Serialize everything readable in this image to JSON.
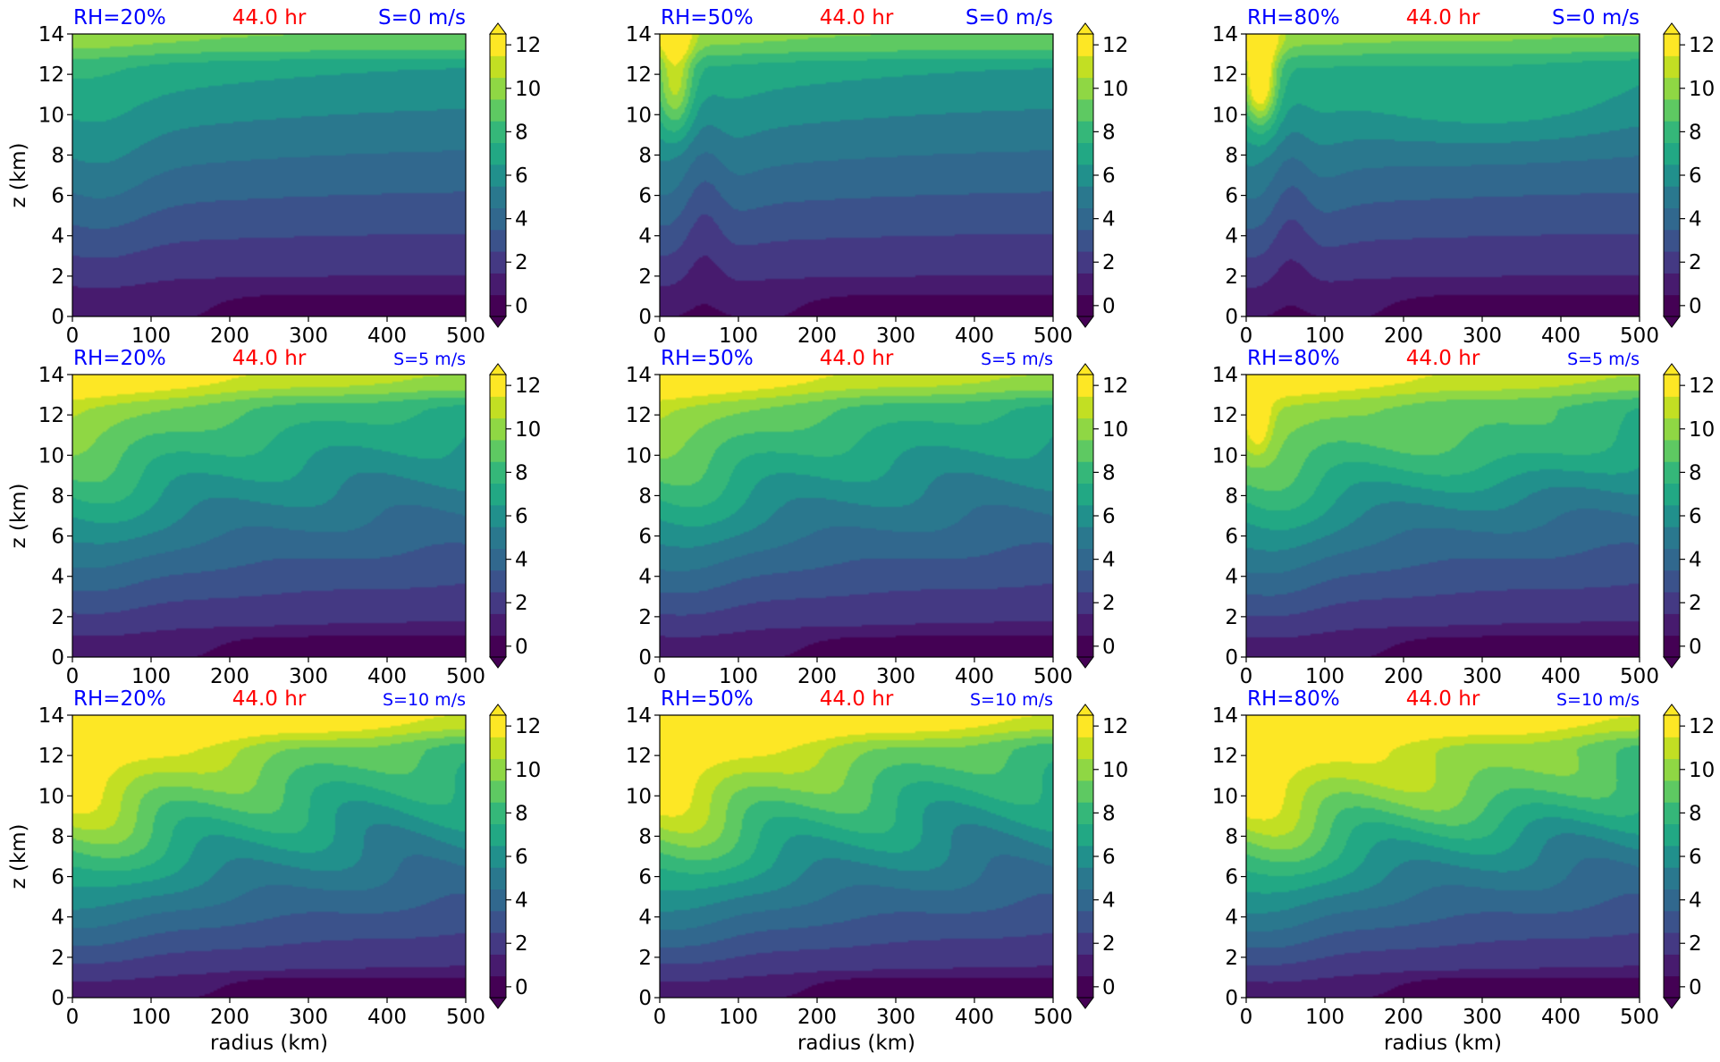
{
  "figure": {
    "shared_xlabel": "radius (km)",
    "shared_ylabel": "z (km)"
  },
  "colors": {
    "rh_label": "#0000ff",
    "time_label": "#ff0000",
    "shear_label": "#0000ff",
    "colormap": [
      "#440154",
      "#471b6e",
      "#443983",
      "#3b528b",
      "#31688e",
      "#2a788e",
      "#21908c",
      "#22a884",
      "#35b779",
      "#5ec962",
      "#8fd744",
      "#c2df23",
      "#fde725"
    ]
  },
  "chart_data": [
    {
      "type": "heatmap",
      "rh_label": "RH=20%",
      "time_label": "44.0 hr",
      "shear_label": "S=0 m/s",
      "xlabel": "",
      "ylabel": "z (km)",
      "xlim": [
        0,
        500
      ],
      "ylim": [
        0,
        14
      ],
      "x_ticks": [
        "0",
        "100",
        "200",
        "300",
        "400",
        "500"
      ],
      "y_ticks": [
        "0",
        "2",
        "4",
        "6",
        "8",
        "10",
        "12",
        "14"
      ],
      "colorbar": {
        "ticks": [
          "0",
          "2",
          "4",
          "6",
          "8",
          "10",
          "12"
        ],
        "range": [
          0,
          13
        ],
        "levels": 13,
        "extend": "both"
      },
      "col": 0,
      "row": 0,
      "rh": 20,
      "shear": 0
    },
    {
      "type": "heatmap",
      "rh_label": "RH=50%",
      "time_label": "44.0 hr",
      "shear_label": "S=0 m/s",
      "xlabel": "",
      "ylabel": "",
      "xlim": [
        0,
        500
      ],
      "ylim": [
        0,
        14
      ],
      "x_ticks": [
        "0",
        "100",
        "200",
        "300",
        "400",
        "500"
      ],
      "y_ticks": [
        "0",
        "2",
        "4",
        "6",
        "8",
        "10",
        "12",
        "14"
      ],
      "colorbar": {
        "ticks": [
          "0",
          "2",
          "4",
          "6",
          "8",
          "10",
          "12"
        ],
        "range": [
          0,
          13
        ],
        "levels": 13,
        "extend": "both"
      },
      "col": 1,
      "row": 0,
      "rh": 50,
      "shear": 0
    },
    {
      "type": "heatmap",
      "rh_label": "RH=80%",
      "time_label": "44.0 hr",
      "shear_label": "S=0 m/s",
      "xlabel": "",
      "ylabel": "",
      "xlim": [
        0,
        500
      ],
      "ylim": [
        0,
        14
      ],
      "x_ticks": [
        "0",
        "100",
        "200",
        "300",
        "400",
        "500"
      ],
      "y_ticks": [
        "0",
        "2",
        "4",
        "6",
        "8",
        "10",
        "12",
        "14"
      ],
      "colorbar": {
        "ticks": [
          "0",
          "2",
          "4",
          "6",
          "8",
          "10",
          "12"
        ],
        "range": [
          0,
          13
        ],
        "levels": 13,
        "extend": "both"
      },
      "col": 2,
      "row": 0,
      "rh": 80,
      "shear": 0
    },
    {
      "type": "heatmap",
      "rh_label": "RH=20%",
      "time_label": "44.0 hr",
      "shear_label": "S=5 m/s",
      "xlabel": "",
      "ylabel": "z (km)",
      "xlim": [
        0,
        500
      ],
      "ylim": [
        0,
        14
      ],
      "x_ticks": [
        "0",
        "100",
        "200",
        "300",
        "400",
        "500"
      ],
      "y_ticks": [
        "0",
        "2",
        "4",
        "6",
        "8",
        "10",
        "12",
        "14"
      ],
      "colorbar": {
        "ticks": [
          "0",
          "2",
          "4",
          "6",
          "8",
          "10",
          "12"
        ],
        "range": [
          0,
          13
        ],
        "levels": 13,
        "extend": "both"
      },
      "col": 0,
      "row": 1,
      "rh": 20,
      "shear": 5
    },
    {
      "type": "heatmap",
      "rh_label": "RH=50%",
      "time_label": "44.0 hr",
      "shear_label": "S=5 m/s",
      "xlabel": "",
      "ylabel": "",
      "xlim": [
        0,
        500
      ],
      "ylim": [
        0,
        14
      ],
      "x_ticks": [
        "0",
        "100",
        "200",
        "300",
        "400",
        "500"
      ],
      "y_ticks": [
        "0",
        "2",
        "4",
        "6",
        "8",
        "10",
        "12",
        "14"
      ],
      "colorbar": {
        "ticks": [
          "0",
          "2",
          "4",
          "6",
          "8",
          "10",
          "12"
        ],
        "range": [
          0,
          13
        ],
        "levels": 13,
        "extend": "both"
      },
      "col": 1,
      "row": 1,
      "rh": 50,
      "shear": 5
    },
    {
      "type": "heatmap",
      "rh_label": "RH=80%",
      "time_label": "44.0 hr",
      "shear_label": "S=5 m/s",
      "xlabel": "",
      "ylabel": "",
      "xlim": [
        0,
        500
      ],
      "ylim": [
        0,
        14
      ],
      "x_ticks": [
        "0",
        "100",
        "200",
        "300",
        "400",
        "500"
      ],
      "y_ticks": [
        "0",
        "2",
        "4",
        "6",
        "8",
        "10",
        "12",
        "14"
      ],
      "colorbar": {
        "ticks": [
          "0",
          "2",
          "4",
          "6",
          "8",
          "10",
          "12"
        ],
        "range": [
          0,
          13
        ],
        "levels": 13,
        "extend": "both"
      },
      "col": 2,
      "row": 1,
      "rh": 80,
      "shear": 5
    },
    {
      "type": "heatmap",
      "rh_label": "RH=20%",
      "time_label": "44.0 hr",
      "shear_label": "S=10 m/s",
      "xlabel": "radius (km)",
      "ylabel": "z (km)",
      "xlim": [
        0,
        500
      ],
      "ylim": [
        0,
        14
      ],
      "x_ticks": [
        "0",
        "100",
        "200",
        "300",
        "400",
        "500"
      ],
      "y_ticks": [
        "0",
        "2",
        "4",
        "6",
        "8",
        "10",
        "12",
        "14"
      ],
      "colorbar": {
        "ticks": [
          "0",
          "2",
          "4",
          "6",
          "8",
          "10",
          "12"
        ],
        "range": [
          0,
          13
        ],
        "levels": 13,
        "extend": "both"
      },
      "col": 0,
      "row": 2,
      "rh": 20,
      "shear": 10
    },
    {
      "type": "heatmap",
      "rh_label": "RH=50%",
      "time_label": "44.0 hr",
      "shear_label": "S=10 m/s",
      "xlabel": "radius (km)",
      "ylabel": "",
      "xlim": [
        0,
        500
      ],
      "ylim": [
        0,
        14
      ],
      "x_ticks": [
        "0",
        "100",
        "200",
        "300",
        "400",
        "500"
      ],
      "y_ticks": [
        "0",
        "2",
        "4",
        "6",
        "8",
        "10",
        "12",
        "14"
      ],
      "colorbar": {
        "ticks": [
          "0",
          "2",
          "4",
          "6",
          "8",
          "10",
          "12"
        ],
        "range": [
          0,
          13
        ],
        "levels": 13,
        "extend": "both"
      },
      "col": 1,
      "row": 2,
      "rh": 50,
      "shear": 10
    },
    {
      "type": "heatmap",
      "rh_label": "RH=80%",
      "time_label": "44.0 hr",
      "shear_label": "S=10 m/s",
      "xlabel": "radius (km)",
      "ylabel": "",
      "xlim": [
        0,
        500
      ],
      "ylim": [
        0,
        14
      ],
      "x_ticks": [
        "0",
        "100",
        "200",
        "300",
        "400",
        "500"
      ],
      "y_ticks": [
        "0",
        "2",
        "4",
        "6",
        "8",
        "10",
        "12",
        "14"
      ],
      "colorbar": {
        "ticks": [
          "0",
          "2",
          "4",
          "6",
          "8",
          "10",
          "12"
        ],
        "range": [
          0,
          13
        ],
        "levels": 13,
        "extend": "both"
      },
      "col": 2,
      "row": 2,
      "rh": 80,
      "shear": 10
    }
  ]
}
